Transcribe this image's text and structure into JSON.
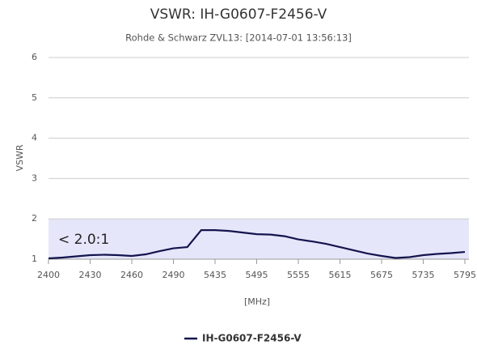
{
  "chart_data": {
    "type": "line",
    "title": "VSWR: IH-G0607-F2456-V",
    "subtitle": "Rohde & Schwarz ZVL13: [2014-07-01 13:56:13]",
    "y_label": "VSWR",
    "x_label": "[MHz]",
    "categories": [
      "2400",
      null,
      null,
      "2430",
      null,
      null,
      "2460",
      null,
      null,
      "2490",
      null,
      null,
      "5435",
      null,
      null,
      "5495",
      null,
      null,
      "5555",
      null,
      null,
      "5615",
      null,
      null,
      "5675",
      null,
      null,
      "5735",
      null,
      null,
      "5795"
    ],
    "series": [
      {
        "name": "IH-G0607-F2456-V",
        "color": "#14144f",
        "values": [
          1.02,
          1.04,
          1.07,
          1.1,
          1.11,
          1.1,
          1.08,
          1.12,
          1.2,
          1.27,
          1.3,
          1.72,
          1.72,
          1.7,
          1.66,
          1.62,
          1.61,
          1.57,
          1.49,
          1.44,
          1.38,
          1.3,
          1.22,
          1.14,
          1.08,
          1.03,
          1.05,
          1.1,
          1.13,
          1.15,
          1.18
        ]
      }
    ],
    "bands": [
      {
        "from": 1,
        "to": 2,
        "label": "< 2.0:1",
        "color": "#e6e6fa"
      }
    ],
    "ylim": [
      1,
      6
    ],
    "yticks": [
      1,
      2,
      3,
      4,
      5,
      6
    ],
    "grid": true,
    "legend": "bottom"
  }
}
